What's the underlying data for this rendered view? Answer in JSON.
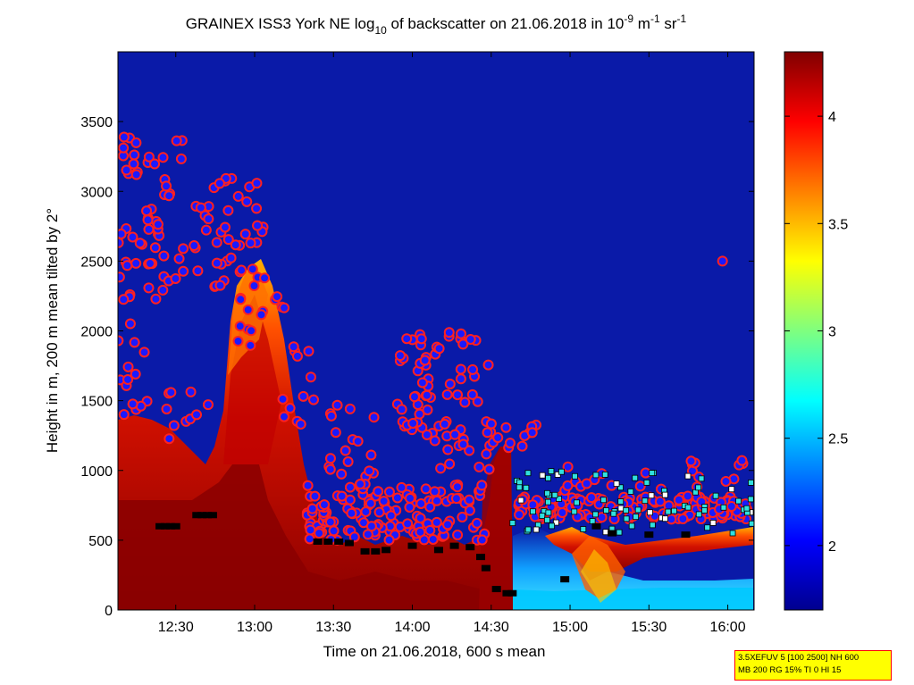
{
  "chart_data": {
    "type": "heatmap",
    "title": {
      "prefix": "GRAINEX ISS3 York NE log",
      "sub": "10",
      "middle": " of backscatter on 21.06.2018 in 10",
      "sup1": "-9",
      "unit_a": " m",
      "sup2": "-1",
      "unit_b": " sr",
      "sup3": "-1"
    },
    "xlabel": "Time on 21.06.2018, 600 s mean",
    "ylabel": "Height in m, 200 m mean tilted by 2°",
    "xlim": [
      "12:08",
      "16:10"
    ],
    "ylim": [
      0,
      4000
    ],
    "x_ticks": [
      "12:30",
      "13:00",
      "13:30",
      "14:00",
      "14:30",
      "15:00",
      "15:30",
      "16:00"
    ],
    "y_ticks": [
      "0",
      "500",
      "1000",
      "1500",
      "2000",
      "2500",
      "3000",
      "3500"
    ],
    "colorbar": {
      "range": [
        1.7,
        4.3
      ],
      "ticks": [
        "2",
        "2.5",
        "3",
        "3.5",
        "4"
      ]
    },
    "grid": false,
    "colormap": "jet",
    "colors": {
      "background": "#0a1aa8",
      "marker_fill": "#1a1aff",
      "marker_edge": "#ff2020",
      "black_marker": "#000000",
      "cyan_marker": "#30e0e0"
    },
    "cloud_base_markers_min_height": [
      {
        "x": "12:24",
        "y": 600
      },
      {
        "x": "12:26",
        "y": 600
      },
      {
        "x": "12:28",
        "y": 600
      },
      {
        "x": "12:30",
        "y": 600
      },
      {
        "x": "12:38",
        "y": 680
      },
      {
        "x": "12:40",
        "y": 680
      },
      {
        "x": "12:42",
        "y": 680
      },
      {
        "x": "12:44",
        "y": 680
      },
      {
        "x": "13:24",
        "y": 490
      },
      {
        "x": "13:28",
        "y": 490
      },
      {
        "x": "13:32",
        "y": 490
      },
      {
        "x": "13:36",
        "y": 480
      },
      {
        "x": "13:42",
        "y": 420
      },
      {
        "x": "13:46",
        "y": 420
      },
      {
        "x": "13:50",
        "y": 430
      },
      {
        "x": "14:00",
        "y": 460
      },
      {
        "x": "14:10",
        "y": 430
      },
      {
        "x": "14:16",
        "y": 460
      },
      {
        "x": "14:22",
        "y": 450
      },
      {
        "x": "14:26",
        "y": 380
      },
      {
        "x": "14:28",
        "y": 300
      },
      {
        "x": "14:32",
        "y": 150
      },
      {
        "x": "14:36",
        "y": 120
      },
      {
        "x": "14:38",
        "y": 120
      },
      {
        "x": "14:58",
        "y": 220
      },
      {
        "x": "15:10",
        "y": 600
      },
      {
        "x": "15:16",
        "y": 550
      },
      {
        "x": "15:30",
        "y": 540
      },
      {
        "x": "15:44",
        "y": 540
      }
    ],
    "isolated_point": {
      "x": "15:58",
      "y": 2500
    }
  },
  "info_box": {
    "line1": "3.5XEFUV 5 [100 2500] NH 600",
    "line2": "MB 200 RG 15% TI 0 HI 15"
  }
}
